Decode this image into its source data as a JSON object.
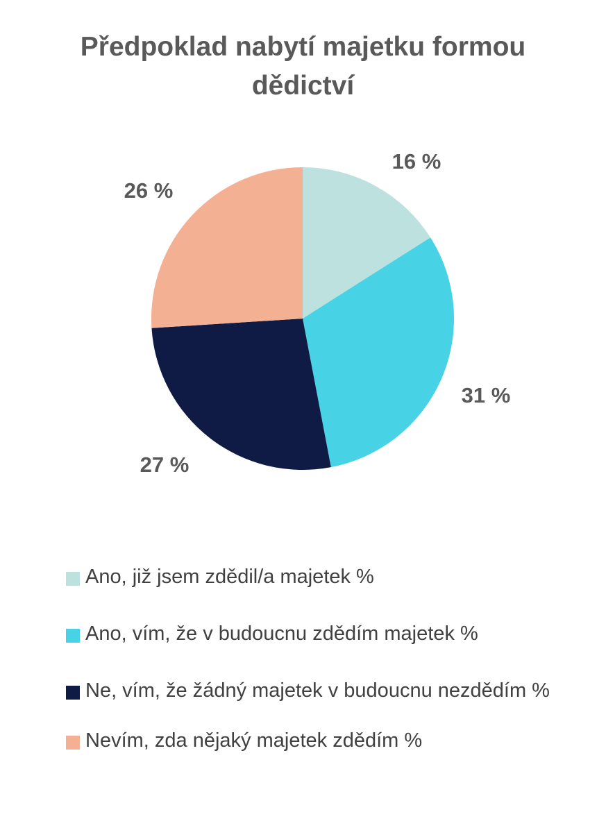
{
  "chart_data": {
    "type": "pie",
    "title": "Předpoklad nabytí majetku formou dědictví",
    "categories": [
      "Ano, již jsem zdědil/a majetek %",
      "Ano, vím, že v budoucnu zdědím majetek %",
      "Ne, vím, že žádný majetek v budoucnu nezdědím %",
      "Nevím, zda nějaký majetek zdědím  %"
    ],
    "values": [
      16,
      31,
      27,
      26
    ],
    "data_labels": [
      "16 %",
      "31 %",
      "27 %",
      "26 %"
    ],
    "colors": [
      "#BCE1DE",
      "#47D3E5",
      "#101B45",
      "#F4B093"
    ],
    "legend_position": "bottom"
  }
}
